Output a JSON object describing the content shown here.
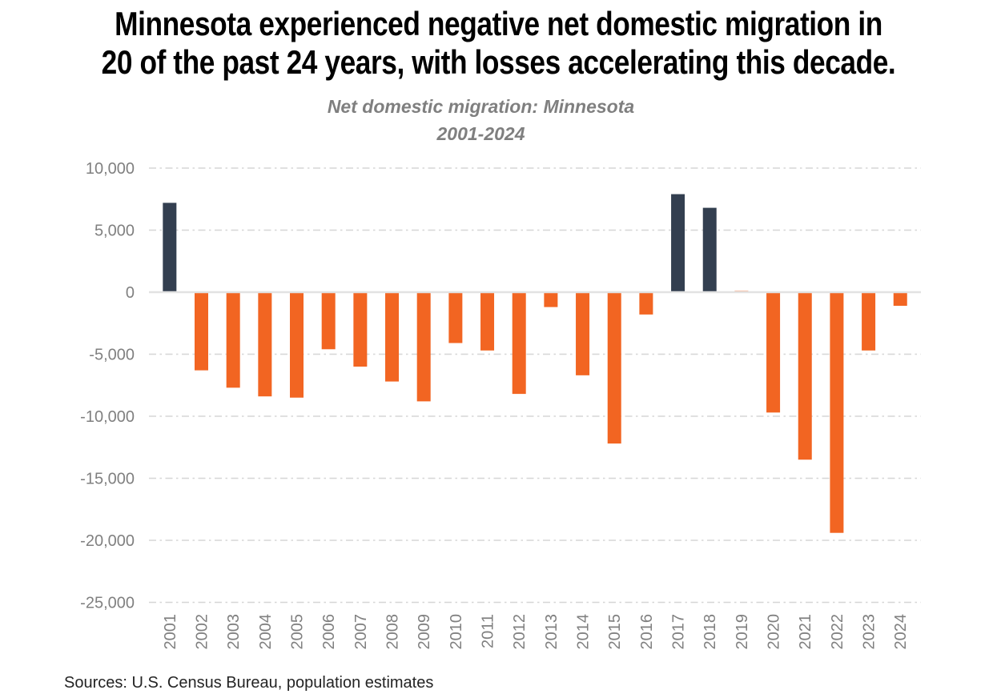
{
  "header": {
    "title_lines": [
      "Minnesota experienced negative net domestic migration in",
      "20 of the past 24 years, with losses accelerating this decade."
    ],
    "subtitle_lines": [
      "Net domestic migration: Minnesota",
      "2001-2024"
    ]
  },
  "chart_data": {
    "type": "bar",
    "title": "Net domestic migration: Minnesota",
    "subtitle": "2001-2024",
    "categories": [
      "2001",
      "2002",
      "2003",
      "2004",
      "2005",
      "2006",
      "2007",
      "2008",
      "2009",
      "2010",
      "2011",
      "2012",
      "2013",
      "2014",
      "2015",
      "2016",
      "2017",
      "2018",
      "2019",
      "2020",
      "2021",
      "2022",
      "2023",
      "2024"
    ],
    "values": [
      7200,
      -6300,
      -7700,
      -8400,
      -8500,
      -4600,
      -6000,
      -7200,
      -8800,
      -4100,
      -4700,
      -8200,
      -1200,
      -6700,
      -12200,
      -1800,
      7900,
      6800,
      100,
      -9700,
      -13500,
      -19400,
      -4700,
      -1100
    ],
    "dark_years": [
      "2001",
      "2017",
      "2018"
    ],
    "colors": {
      "dark_bar": "#333F50",
      "orange_bar": "#F26522",
      "gridline": "#D6D6D6",
      "zero_line": "#E2E2E2",
      "axis_label": "#808080"
    },
    "yticks": [
      {
        "label": "10,000",
        "value": 10000
      },
      {
        "label": "5,000",
        "value": 5000
      },
      {
        "label": "0",
        "value": 0
      },
      {
        "label": "-5,000",
        "value": -5000
      },
      {
        "label": "-10,000",
        "value": -10000
      },
      {
        "label": "-15,000",
        "value": -15000
      },
      {
        "label": "-20,000",
        "value": -20000
      },
      {
        "label": "-25,000",
        "value": -25000
      }
    ],
    "ylim": [
      -25000,
      10000
    ],
    "xlabel": "",
    "ylabel": "",
    "grid": "horizontal dash-dot",
    "legend": "none"
  },
  "source": {
    "text": "Sources: U.S. Census Bureau, population estimates"
  }
}
